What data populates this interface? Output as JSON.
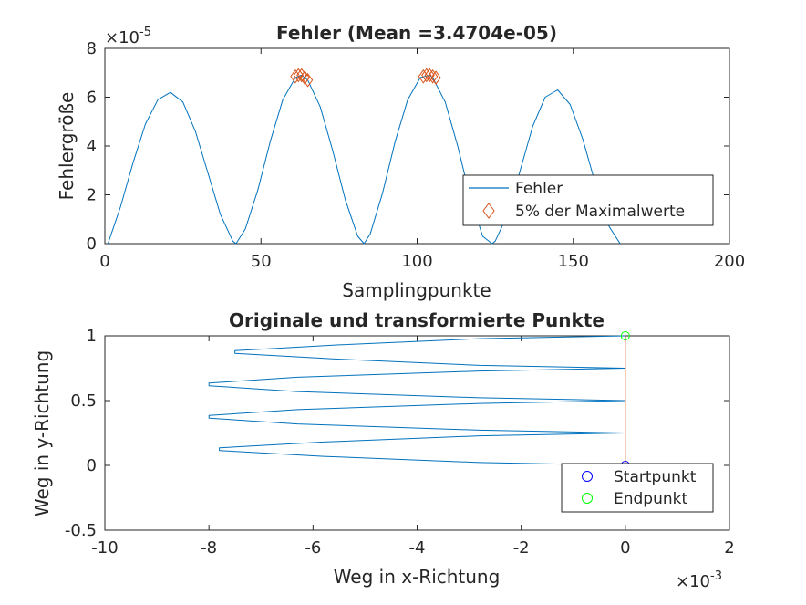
{
  "chart_data": [
    {
      "type": "line",
      "title": "Fehler (Mean =3.4704e-05)",
      "xlabel": "Samplingpunkte",
      "ylabel": "Fehlergröße",
      "xlim": [
        0,
        200
      ],
      "ylim": [
        0,
        8e-05
      ],
      "exponent_label": "×10",
      "exponent": "-5",
      "xticks": [
        0,
        50,
        100,
        150,
        200
      ],
      "xtick_labels": [
        "0",
        "50",
        "100",
        "150",
        "200"
      ],
      "yticks": [
        0,
        2e-05,
        4e-05,
        6e-05,
        8e-05
      ],
      "ytick_labels": [
        "0",
        "2",
        "4",
        "6",
        "8"
      ],
      "grid": false,
      "legend_position": "lower-right",
      "series": [
        {
          "name": "Fehler",
          "color": "#0072bd",
          "x": [
            1,
            5,
            9,
            13,
            17,
            21,
            25,
            29,
            33,
            37,
            41,
            42,
            45,
            49,
            53,
            57,
            61,
            63,
            65,
            69,
            73,
            77,
            81,
            83,
            85,
            89,
            93,
            97,
            101,
            104,
            105,
            109,
            113,
            117,
            121,
            124,
            125,
            129,
            133,
            137,
            141,
            145,
            149,
            153,
            157,
            161,
            165
          ],
          "y": [
            0,
            1.5e-05,
            3.3e-05,
            4.9e-05,
            5.9e-05,
            6.2e-05,
            5.8e-05,
            4.6e-05,
            2.9e-05,
            1.2e-05,
            1e-06,
            0,
            6e-06,
            2.2e-05,
            4.2e-05,
            5.9e-05,
            6.8e-05,
            6.9e-05,
            6.7e-05,
            5.6e-05,
            3.8e-05,
            1.8e-05,
            3e-06,
            0,
            4e-06,
            2.1e-05,
            4.2e-05,
            5.9e-05,
            6.8e-05,
            6.9e-05,
            6.8e-05,
            5.8e-05,
            4e-05,
            1.9e-05,
            3e-06,
            0,
            1e-06,
            1.2e-05,
            3e-05,
            4.8e-05,
            6e-05,
            6.3e-05,
            5.7e-05,
            4.3e-05,
            2.5e-05,
            8e-06,
            0
          ]
        },
        {
          "name": "5% der Maximalwerte",
          "color": "#d95319",
          "marker": "diamond",
          "x": [
            61,
            62,
            63,
            64,
            65,
            102,
            103,
            104,
            105,
            106
          ],
          "y": [
            6.85e-05,
            6.9e-05,
            6.9e-05,
            6.8e-05,
            6.7e-05,
            6.85e-05,
            6.9e-05,
            6.9e-05,
            6.85e-05,
            6.8e-05
          ]
        }
      ]
    },
    {
      "type": "line",
      "title": "Originale und transformierte Punkte",
      "xlabel": "Weg in x-Richtung",
      "ylabel": "Weg in y-Richtung",
      "xlim": [
        -0.01,
        0.002
      ],
      "ylim": [
        -0.5,
        1
      ],
      "exponent_label": "×10",
      "exponent": "-3",
      "xticks": [
        -0.01,
        -0.008,
        -0.006,
        -0.004,
        -0.002,
        0,
        0.002
      ],
      "xtick_labels": [
        "-10",
        "-8",
        "-6",
        "-4",
        "-2",
        "0",
        "2"
      ],
      "yticks": [
        -0.5,
        0,
        0.5,
        1
      ],
      "ytick_labels": [
        "-0.5",
        "0",
        "0.5",
        "1"
      ],
      "grid": false,
      "legend_position": "lower-right",
      "series": [
        {
          "color": "#0072bd",
          "x": [
            0,
            -0.0028,
            -0.0058,
            -0.0078,
            -0.0078,
            -0.0058,
            -0.0028,
            0,
            -0.0028,
            -0.0063,
            -0.008,
            -0.008,
            -0.0063,
            -0.0028,
            0,
            -0.0028,
            -0.0063,
            -0.008,
            -0.008,
            -0.0063,
            -0.0028,
            0,
            -0.0028,
            -0.0055,
            -0.0075,
            -0.0075,
            -0.0055,
            -0.0028,
            0
          ],
          "y": [
            0,
            0.022,
            0.07,
            0.115,
            0.135,
            0.18,
            0.228,
            0.25,
            0.272,
            0.32,
            0.365,
            0.385,
            0.43,
            0.478,
            0.5,
            0.522,
            0.57,
            0.615,
            0.635,
            0.68,
            0.728,
            0.75,
            0.772,
            0.82,
            0.865,
            0.885,
            0.93,
            0.978,
            1
          ]
        },
        {
          "color": "#d95319",
          "x": [
            0,
            0
          ],
          "y": [
            0,
            1
          ]
        },
        {
          "name": "Startpunkt",
          "color": "#0000ff",
          "marker": "circle",
          "x": [
            0
          ],
          "y": [
            0
          ]
        },
        {
          "name": "Endpunkt",
          "color": "#00ff00",
          "marker": "circle",
          "x": [
            0
          ],
          "y": [
            1
          ]
        }
      ]
    }
  ]
}
